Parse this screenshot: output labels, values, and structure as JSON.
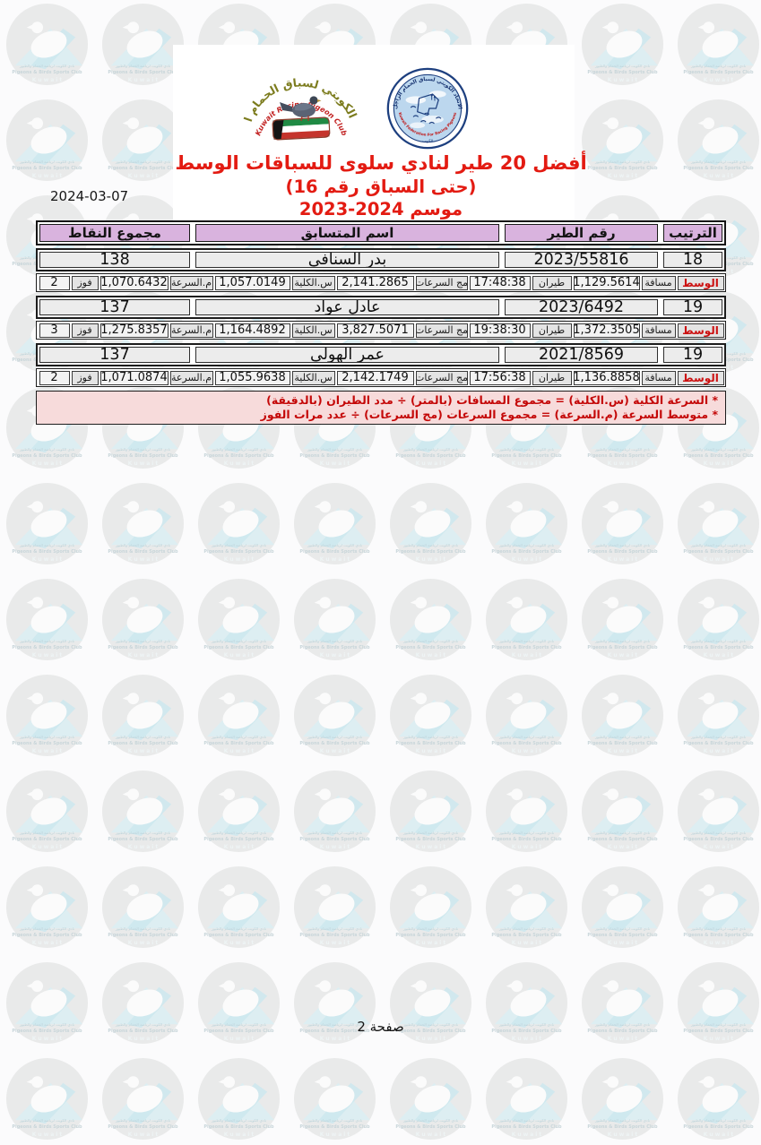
{
  "page": {
    "date": "2024-03-07",
    "footer": "صفحة 2"
  },
  "logos": {
    "club": {
      "arabic": "النادي الكويتي لسباق الحمام الزاجل",
      "english": "Kuwait Racing Pigeon Club"
    },
    "federation": {
      "top_arabic": "الاتحاد الكويتي لسباق الحمام الزاجل",
      "bottom_english": "Kuwait Federation For Racing Pigeons",
      "bottom_small": "الكويت"
    }
  },
  "title": {
    "line1": "أفضل 20 طير لنادي سلوى للسباقات الوسط",
    "line2": "(حتى السباق رقم 16)",
    "line3": "موسم 2024-2023"
  },
  "table": {
    "headers": {
      "rank": "الترتيب",
      "bird": "رقم الطير",
      "name": "اسم المتسابق",
      "points": "مجموع النقاط"
    },
    "labels": {
      "wasat": "الوسط",
      "distance": "مسافة",
      "flight": "طيران",
      "speeds_sum": "مج السرعات",
      "overall_speed": "س.الكلية",
      "avg_speed": "م.السرعة",
      "win": "فوز"
    },
    "rows": [
      {
        "rank": "18",
        "bird": "2023/55816",
        "name": "بدر السنافى",
        "points": "138",
        "distance": "1,129.5614",
        "flight_time": "17:48:38",
        "speeds_sum": "2,141.2865",
        "overall_speed": "1,057.0149",
        "avg_speed": "1,070.6432",
        "wins": "2"
      },
      {
        "rank": "19",
        "bird": "2023/6492",
        "name": "عادل عواد",
        "points": "137",
        "distance": "1,372.3505",
        "flight_time": "19:38:30",
        "speeds_sum": "3,827.5071",
        "overall_speed": "1,164.4892",
        "avg_speed": "1,275.8357",
        "wins": "3"
      },
      {
        "rank": "19",
        "bird": "2021/8569",
        "name": "عمر الهولى",
        "points": "137",
        "distance": "1,136.8858",
        "flight_time": "17:56:38",
        "speeds_sum": "2,142.1749",
        "overall_speed": "1,055.9638",
        "avg_speed": "1,071.0874",
        "wins": "2"
      }
    ]
  },
  "notes": [
    "* السرعة الكلية (س.الكلية) = مجموع المسافات (بالمتر) ÷ مدد الطيران (بالدقيقة)",
    "* متوسط السرعة (م.السرعة) = مجموع السرعات (مج السرعات) ÷ عدد مرات الفوز"
  ],
  "watermark": {
    "arabic": "نادي الكويت لرياضة الحمام والطيور",
    "club": "Pigeons & Birds Sports Club",
    "country": "K u w a i t"
  },
  "colors": {
    "accent_red": "#e31b12",
    "header_purple": "#d9b3de",
    "notes_pink": "#f7dbdb",
    "wasat_red": "#cc1111"
  }
}
